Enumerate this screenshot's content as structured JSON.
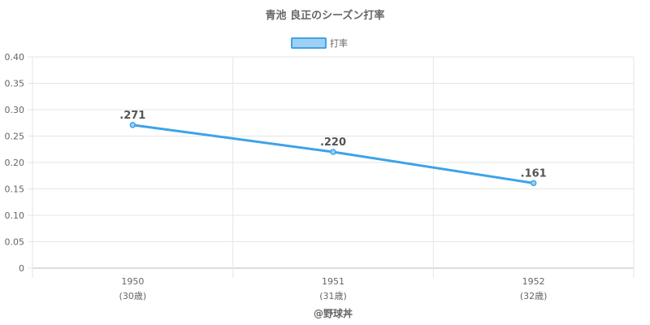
{
  "chart_data": {
    "type": "line",
    "title": "青池 良正のシーズン打率",
    "categories": [
      "1950",
      "1951",
      "1952"
    ],
    "category_sublabels": [
      "(30歳)",
      "(31歳)",
      "(32歳)"
    ],
    "series": [
      {
        "name": "打率",
        "values": [
          0.271,
          0.22,
          0.161
        ],
        "labels": [
          ".271",
          ".220",
          ".161"
        ]
      }
    ],
    "ylim": [
      0,
      0.4
    ],
    "yticks": [
      "0",
      "0.05",
      "0.10",
      "0.15",
      "0.20",
      "0.25",
      "0.30",
      "0.35",
      "0.40"
    ],
    "grid": true,
    "legend_position": "top-center",
    "colors": {
      "line": "#3da3e8",
      "fill": "#9fd0f3",
      "grid": "#e6e6e6",
      "axis": "#bbbbbb"
    }
  },
  "footer": "@野球丼"
}
